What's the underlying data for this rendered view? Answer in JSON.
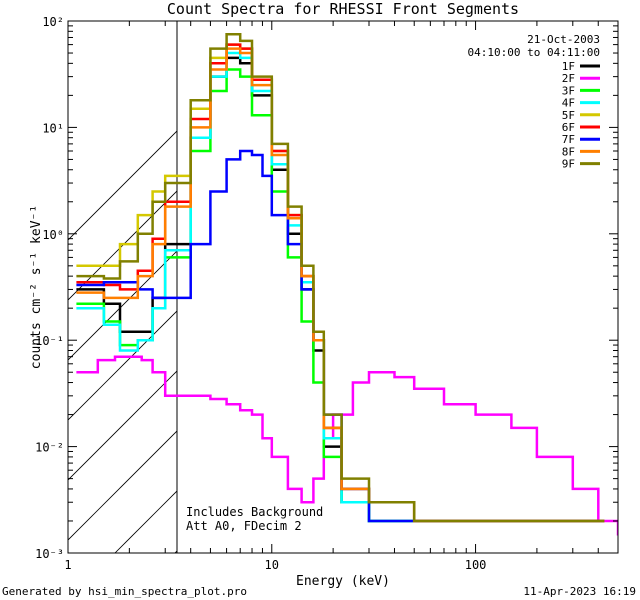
{
  "chart_data": {
    "type": "line",
    "title": "Count Spectra for RHESSI Front Segments",
    "xlabel": "Energy (keV)",
    "ylabel": "counts cm⁻² s⁻¹ keV⁻¹",
    "xscale": "log",
    "yscale": "log",
    "xlim": [
      1,
      500
    ],
    "ylim": [
      0.001,
      100
    ],
    "x_ticks": [
      {
        "value": 1,
        "label": "1"
      },
      {
        "value": 10,
        "label": "10"
      },
      {
        "value": 100,
        "label": "100"
      }
    ],
    "y_ticks": [
      {
        "value": 100,
        "label": "10²"
      },
      {
        "value": 10,
        "label": "10¹"
      },
      {
        "value": 1,
        "label": "10⁰"
      },
      {
        "value": 0.1,
        "label": "10⁻¹"
      },
      {
        "value": 0.01,
        "label": "10⁻²"
      },
      {
        "value": 0.001,
        "label": "10⁻³"
      }
    ],
    "hatched_region_below_keV": 3,
    "date": "21-Oct-2003",
    "time_range": "04:10:00 to 04:11:00",
    "annotations": [
      "Includes Background",
      "Att A0, FDecim 2"
    ],
    "series": [
      {
        "name": "1F",
        "color": "#000000",
        "x": [
          1.1,
          1.5,
          1.8,
          2.2,
          2.6,
          3.0,
          4.0,
          5.0,
          6.0,
          7.0,
          8.0,
          10.0,
          12.0,
          14.0,
          16.0,
          18.0,
          22.0,
          30.0,
          50.0,
          100.0,
          200.0,
          400.0
        ],
        "y": [
          0.3,
          0.22,
          0.12,
          0.12,
          0.25,
          0.8,
          8,
          30,
          45,
          40,
          20,
          4,
          1.0,
          0.3,
          0.08,
          0.01,
          0.003,
          0.002,
          0.002,
          0.002,
          0.002,
          0.002
        ]
      },
      {
        "name": "2F",
        "color": "#ff00ff",
        "x": [
          1.1,
          1.4,
          1.7,
          2.0,
          2.3,
          2.6,
          3.0,
          4.0,
          5.0,
          6.0,
          7.0,
          8.0,
          9.0,
          10.0,
          12.0,
          14.0,
          16.0,
          18.0,
          20.0,
          25.0,
          30.0,
          40.0,
          50.0,
          70.0,
          100.0,
          150.0,
          200.0,
          300.0,
          400.0,
          500.0
        ],
        "y": [
          0.05,
          0.065,
          0.07,
          0.07,
          0.065,
          0.05,
          0.03,
          0.03,
          0.028,
          0.025,
          0.022,
          0.02,
          0.012,
          0.008,
          0.004,
          0.003,
          0.005,
          0.012,
          0.02,
          0.04,
          0.05,
          0.045,
          0.035,
          0.025,
          0.02,
          0.015,
          0.008,
          0.004,
          0.002,
          0.0015
        ]
      },
      {
        "name": "3F",
        "color": "#00ff00",
        "x": [
          1.1,
          1.5,
          1.8,
          2.2,
          2.6,
          3.0,
          4.0,
          5.0,
          6.0,
          7.0,
          8.0,
          10.0,
          12.0,
          14.0,
          16.0,
          18.0,
          22.0,
          30.0,
          50.0,
          100.0,
          200.0,
          400.0
        ],
        "y": [
          0.22,
          0.15,
          0.09,
          0.1,
          0.2,
          0.6,
          6,
          22,
          35,
          30,
          13,
          2.5,
          0.6,
          0.15,
          0.04,
          0.008,
          0.003,
          0.002,
          0.002,
          0.002,
          0.002,
          0.002
        ]
      },
      {
        "name": "4F",
        "color": "#00ffff",
        "x": [
          1.1,
          1.5,
          1.8,
          2.2,
          2.6,
          3.0,
          4.0,
          5.0,
          6.0,
          7.0,
          8.0,
          10.0,
          12.0,
          14.0,
          16.0,
          18.0,
          22.0,
          30.0,
          50.0,
          100.0,
          200.0,
          400.0
        ],
        "y": [
          0.2,
          0.14,
          0.08,
          0.1,
          0.2,
          0.7,
          8,
          30,
          50,
          45,
          22,
          4.5,
          1.2,
          0.35,
          0.1,
          0.012,
          0.003,
          0.002,
          0.002,
          0.002,
          0.002,
          0.002
        ]
      },
      {
        "name": "5F",
        "color": "#d4c800",
        "x": [
          1.1,
          1.5,
          1.8,
          2.2,
          2.6,
          3.0,
          4.0,
          5.0,
          6.0,
          7.0,
          8.0,
          10.0,
          12.0,
          14.0,
          16.0,
          18.0,
          22.0,
          30.0,
          50.0,
          100.0,
          200.0,
          400.0
        ],
        "y": [
          0.5,
          0.5,
          0.8,
          1.5,
          2.5,
          3.5,
          15,
          45,
          60,
          55,
          28,
          6,
          1.5,
          0.4,
          0.1,
          0.015,
          0.004,
          0.003,
          0.002,
          0.002,
          0.002,
          0.002
        ]
      },
      {
        "name": "6F",
        "color": "#ff0000",
        "x": [
          1.1,
          1.5,
          1.8,
          2.2,
          2.6,
          3.0,
          4.0,
          5.0,
          6.0,
          7.0,
          8.0,
          10.0,
          12.0,
          14.0,
          16.0,
          18.0,
          22.0,
          30.0,
          50.0,
          100.0,
          200.0,
          400.0
        ],
        "y": [
          0.35,
          0.33,
          0.3,
          0.45,
          0.9,
          2.0,
          12,
          40,
          60,
          55,
          28,
          6,
          1.5,
          0.4,
          0.1,
          0.015,
          0.004,
          0.003,
          0.002,
          0.002,
          0.002,
          0.002
        ]
      },
      {
        "name": "7F",
        "color": "#0000ff",
        "x": [
          1.1,
          1.5,
          1.8,
          2.2,
          2.6,
          3.0,
          4.0,
          5.0,
          6.0,
          7.0,
          8.0,
          9.0,
          10.0,
          12.0,
          14.0,
          16.0,
          18.0,
          22.0,
          30.0,
          50.0,
          100.0,
          200.0,
          400.0
        ],
        "y": [
          0.33,
          0.35,
          0.35,
          0.3,
          0.25,
          0.25,
          0.8,
          2.5,
          5,
          6,
          5.5,
          3.5,
          1.5,
          0.8,
          0.3,
          0.1,
          0.02,
          0.004,
          0.002,
          0.002,
          0.002,
          0.002,
          0.002
        ]
      },
      {
        "name": "8F",
        "color": "#ff7f00",
        "x": [
          1.1,
          1.5,
          1.8,
          2.2,
          2.6,
          3.0,
          4.0,
          5.0,
          6.0,
          7.0,
          8.0,
          10.0,
          12.0,
          14.0,
          16.0,
          18.0,
          22.0,
          30.0,
          50.0,
          100.0,
          200.0,
          400.0
        ],
        "y": [
          0.28,
          0.25,
          0.25,
          0.4,
          0.8,
          1.8,
          10,
          35,
          55,
          50,
          25,
          5.5,
          1.4,
          0.4,
          0.1,
          0.015,
          0.004,
          0.003,
          0.002,
          0.002,
          0.002,
          0.002
        ]
      },
      {
        "name": "9F",
        "color": "#808000",
        "x": [
          1.1,
          1.5,
          1.8,
          2.2,
          2.6,
          3.0,
          4.0,
          5.0,
          6.0,
          7.0,
          8.0,
          10.0,
          12.0,
          14.0,
          16.0,
          18.0,
          22.0,
          30.0,
          50.0,
          100.0,
          200.0,
          400.0
        ],
        "y": [
          0.4,
          0.38,
          0.55,
          1.0,
          2.0,
          3.0,
          18,
          55,
          75,
          65,
          30,
          7,
          1.8,
          0.5,
          0.12,
          0.02,
          0.005,
          0.003,
          0.002,
          0.002,
          0.002,
          0.002
        ]
      }
    ]
  },
  "footer": {
    "left": "Generated by hsi_min_spectra_plot.pro",
    "right": "11-Apr-2023 16:19"
  }
}
